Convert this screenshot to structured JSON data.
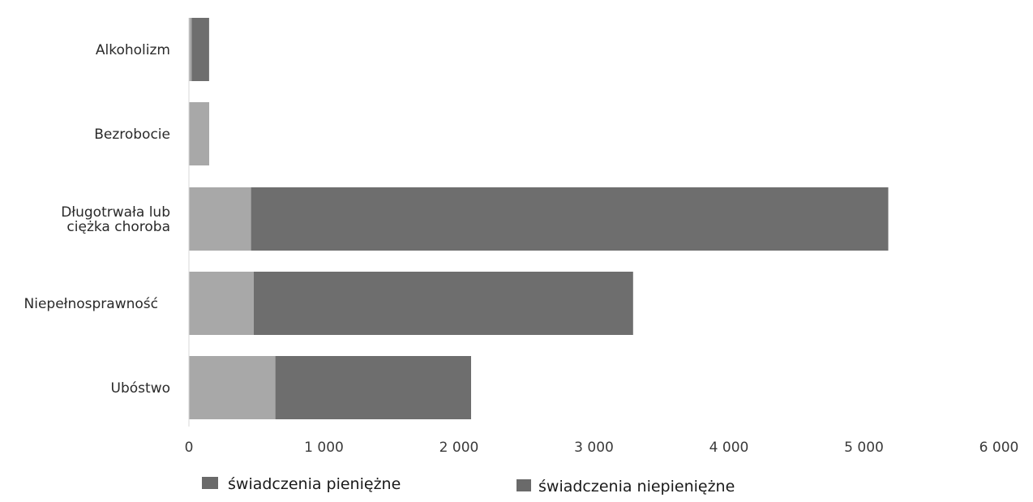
{
  "chart_data": {
    "type": "bar",
    "orientation": "horizontal",
    "stacked": true,
    "categories": [
      "Alkoholizm",
      "Bezrobocie",
      "Długotrwała lub ciężka choroba",
      "Niepełnosprawność",
      "Ubóstwo"
    ],
    "category_label_lines": [
      [
        "Alkoholizm"
      ],
      [
        "Bezrobocie"
      ],
      [
        "Długotrwała lub",
        "ciężka choroba"
      ],
      [
        "Niepełnosprawność"
      ],
      [
        "Ubóstwo"
      ]
    ],
    "series": [
      {
        "name": "świadczenia pieniężne",
        "color": "#a8a8a8",
        "values": [
          20,
          150,
          460,
          480,
          640
        ]
      },
      {
        "name": "świadczenia niepieniężne",
        "color": "#6e6e6e",
        "values": [
          130,
          0,
          4720,
          2810,
          1450
        ]
      }
    ],
    "x_ticks": [
      0,
      1000,
      2000,
      3000,
      4000,
      5000,
      6000
    ],
    "x_tick_labels": [
      "0",
      "1 000",
      "2 000",
      "3 000",
      "4 000",
      "5 000",
      "6 000"
    ],
    "xlim": [
      0,
      6000
    ],
    "title": "",
    "xlabel": "",
    "ylabel": "",
    "grid": false,
    "legend_position": "bottom"
  }
}
